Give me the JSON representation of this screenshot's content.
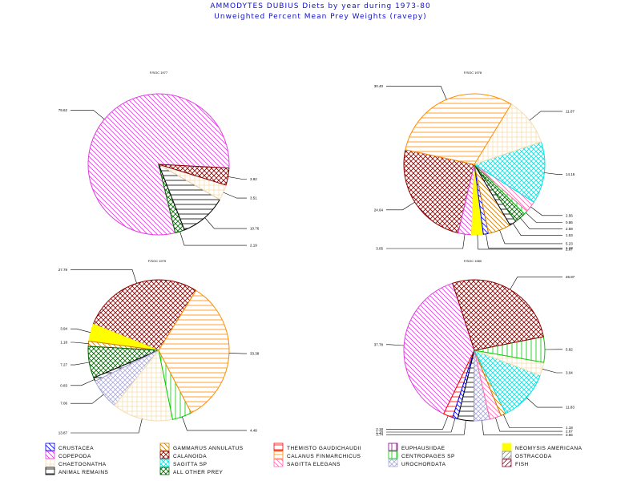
{
  "header": {
    "title": "AMMODYTES DUBIUS Diets by year during 1973-80",
    "subtitle": "Unweighted Percent Mean Prey Weights (ravepy)"
  },
  "colors": {
    "title": "#1010c8",
    "outline_default": "#000000"
  },
  "categories": [
    {
      "name": "CRUSTACEA",
      "color": "#0000ff",
      "pattern": "diag-back"
    },
    {
      "name": "GAMMARUS ANNULATUS",
      "color": "#cc7a00",
      "pattern": "diag-back"
    },
    {
      "name": "THEMISTO GAUDICHAUDII",
      "color": "#ff0000",
      "pattern": "horizontal"
    },
    {
      "name": "EUPHAUSIIDAE",
      "color": "#8b008b",
      "pattern": "vertical"
    },
    {
      "name": "NEOMYSIS AMERICANA",
      "color": "#ffff00",
      "pattern": "solid"
    },
    {
      "name": "COPEPODA",
      "color": "#e040e0",
      "pattern": "diag-back"
    },
    {
      "name": "CALANOIDA",
      "color": "#8b0000",
      "pattern": "cross-diag"
    },
    {
      "name": "CALANUS FINMARCHICUS",
      "color": "#ff8c00",
      "pattern": "horizontal"
    },
    {
      "name": "CENTROPAGES SP",
      "color": "#00cc00",
      "pattern": "vertical"
    },
    {
      "name": "OSTRACODA",
      "color": "#888888",
      "pattern": "diag-fwd"
    },
    {
      "name": "CHAETOGNATHA",
      "color": "#f5deb3",
      "pattern": "grid"
    },
    {
      "name": "SAGITTA SP",
      "color": "#00e5e5",
      "pattern": "cross-diag"
    },
    {
      "name": "SAGITTA ELEGANS",
      "color": "#ff69b4",
      "pattern": "diag-back"
    },
    {
      "name": "UROCHORDATA",
      "color": "#aaaadd",
      "pattern": "cross-diag"
    },
    {
      "name": "FISH",
      "color": "#a0002a",
      "pattern": "diag-fwd"
    },
    {
      "name": "ANIMAL REMAINS",
      "color": "#000000",
      "pattern": "horizontal"
    },
    {
      "name": "ALL OTHER PREY",
      "color": "#006400",
      "pattern": "cross-diag"
    }
  ],
  "chart_data": [
    {
      "type": "pie",
      "title": "F/SOC 1977",
      "slices": [
        {
          "category": "COPEPODA",
          "value": 79.62,
          "label": "79.62"
        },
        {
          "category": "ALL OTHER PREY",
          "value": 2.19,
          "label": "2.19"
        },
        {
          "category": "ANIMAL REMAINS",
          "value": 10.76,
          "label": "10.76"
        },
        {
          "category": "CHAETOGNATHA",
          "value": 3.51,
          "label": "3.51"
        },
        {
          "category": "CALANOIDA",
          "value": 3.92,
          "label": "3.92"
        }
      ]
    },
    {
      "type": "pie",
      "title": "F/SOC 1978",
      "slices": [
        {
          "category": "CALANOIDA",
          "value": 24.64,
          "label": "24.64"
        },
        {
          "category": "COPEPODA",
          "value": 3.05,
          "label": "3.05"
        },
        {
          "category": "NEOMYSIS AMERICANA",
          "value": 2.67,
          "label": "2.67"
        },
        {
          "category": "CRUSTACEA",
          "value": 1.18,
          "label": "1.18"
        },
        {
          "category": "GAMMARUS ANNULATUS",
          "value": 5.23,
          "label": "5.23"
        },
        {
          "category": "ANIMAL REMAINS",
          "value": 1.53,
          "label": "1.53"
        },
        {
          "category": "ALL OTHER PREY",
          "value": 2.59,
          "label": "2.59"
        },
        {
          "category": "CENTROPAGES SP",
          "value": 0.86,
          "label": "0.86"
        },
        {
          "category": "SAGITTA ELEGANS",
          "value": 2.56,
          "label": "2.56"
        },
        {
          "category": "SAGITTA SP",
          "value": 14.16,
          "label": "14.16"
        },
        {
          "category": "CHAETOGNATHA",
          "value": 11.07,
          "label": "11.07"
        },
        {
          "category": "CALANUS FINMARCHICUS",
          "value": 30.4,
          "label": "30.40"
        }
      ]
    },
    {
      "type": "pie",
      "title": "F/SOC 1979",
      "slices": [
        {
          "category": "CALANOIDA",
          "value": 27.79,
          "label": "27.79"
        },
        {
          "category": "NEOMYSIS AMERICANA",
          "value": 3.94,
          "label": "3.94"
        },
        {
          "category": "GAMMARUS ANNULATUS",
          "value": 1.18,
          "label": "1.18"
        },
        {
          "category": "ALL OTHER PREY",
          "value": 7.27,
          "label": "7.27"
        },
        {
          "category": "ANIMAL REMAINS",
          "value": 0.83,
          "label": "0.83"
        },
        {
          "category": "UROCHORDATA",
          "value": 7.06,
          "label": "7.06"
        },
        {
          "category": "CHAETOGNATHA",
          "value": 13.87,
          "label": "13.87"
        },
        {
          "category": "CENTROPAGES SP",
          "value": 4.48,
          "label": "4.48"
        },
        {
          "category": "CALANUS FINMARCHICUS",
          "value": 33.38,
          "label": "33.38"
        }
      ]
    },
    {
      "type": "pie",
      "title": "F/SOC 1980",
      "slices": [
        {
          "category": "COPEPODA",
          "value": 37.78,
          "label": "37.78"
        },
        {
          "category": "THEMISTO GAUDICHAUDII",
          "value": 2.18,
          "label": "2.18"
        },
        {
          "category": "CRUSTACEA",
          "value": 1.18,
          "label": "1.18"
        },
        {
          "category": "ANIMAL REMAINS",
          "value": 3.74,
          "label": "3.74"
        },
        {
          "category": "UROCHORDATA",
          "value": 3.56,
          "label": "3.56"
        },
        {
          "category": "SAGITTA ELEGANS",
          "value": 2.67,
          "label": "2.67"
        },
        {
          "category": "GAMMARUS ANNULATUS",
          "value": 1.18,
          "label": "1.18"
        },
        {
          "category": "SAGITTA SP",
          "value": 11.83,
          "label": "11.83"
        },
        {
          "category": "CHAETOGNATHA",
          "value": 3.04,
          "label": "3.04"
        },
        {
          "category": "CENTROPAGES SP",
          "value": 5.82,
          "label": "5.82"
        },
        {
          "category": "CALANOIDA",
          "value": 26.87,
          "label": "26.87"
        }
      ]
    }
  ]
}
